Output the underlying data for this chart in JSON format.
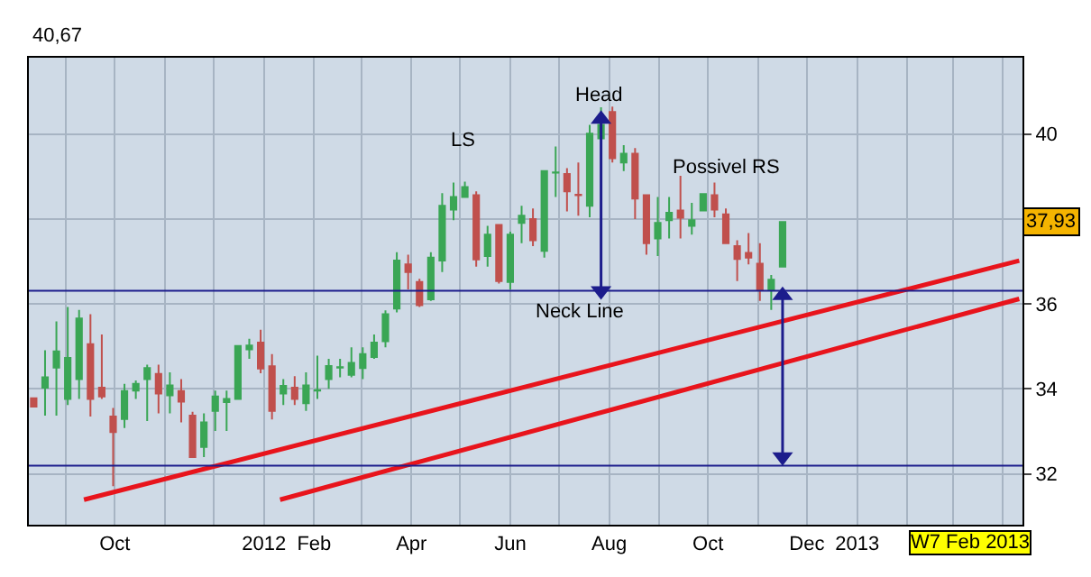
{
  "chart_data": {
    "type": "candlestick",
    "x": [
      "2011-08-12",
      "2011-08-19",
      "2011-08-26",
      "2011-09-02",
      "2011-09-09",
      "2011-09-16",
      "2011-09-23",
      "2011-09-30",
      "2011-10-07",
      "2011-10-14",
      "2011-10-21",
      "2011-10-28",
      "2011-11-04",
      "2011-11-11",
      "2011-11-18",
      "2011-11-25",
      "2011-12-02",
      "2011-12-09",
      "2011-12-16",
      "2011-12-23",
      "2011-12-30",
      "2012-01-06",
      "2012-01-13",
      "2012-01-20",
      "2012-01-27",
      "2012-02-03",
      "2012-02-10",
      "2012-02-17",
      "2012-02-24",
      "2012-03-02",
      "2012-03-09",
      "2012-03-16",
      "2012-03-23",
      "2012-03-30",
      "2012-04-06",
      "2012-04-13",
      "2012-04-20",
      "2012-04-27",
      "2012-05-04",
      "2012-05-11",
      "2012-05-18",
      "2012-05-25",
      "2012-06-01",
      "2012-06-08",
      "2012-06-15",
      "2012-06-22",
      "2012-06-29",
      "2012-07-06",
      "2012-07-13",
      "2012-07-20",
      "2012-07-27",
      "2012-08-03",
      "2012-08-10",
      "2012-08-17",
      "2012-08-24",
      "2012-08-31",
      "2012-09-07",
      "2012-09-14",
      "2012-09-21",
      "2012-09-28",
      "2012-10-05",
      "2012-10-12",
      "2012-10-19",
      "2012-10-26",
      "2012-11-02",
      "2012-11-09",
      "2012-11-16"
    ],
    "ohlc": [
      [
        33.78,
        33.78,
        33.58,
        33.58
      ],
      [
        34.03,
        34.91,
        33.37,
        34.27
      ],
      [
        34.5,
        35.59,
        33.37,
        34.88
      ],
      [
        33.76,
        35.93,
        33.62,
        34.73
      ],
      [
        34.23,
        35.86,
        33.76,
        35.66
      ],
      [
        35.05,
        35.76,
        33.35,
        33.76
      ],
      [
        34.03,
        35.28,
        33.76,
        33.82
      ],
      [
        33.35,
        33.55,
        31.71,
        32.98
      ],
      [
        33.29,
        34.12,
        33.08,
        33.95
      ],
      [
        33.96,
        34.2,
        33.76,
        34.12
      ],
      [
        34.23,
        34.57,
        33.24,
        34.49
      ],
      [
        34.35,
        34.57,
        33.42,
        33.89
      ],
      [
        33.85,
        34.39,
        33.42,
        34.08
      ],
      [
        33.95,
        34.23,
        33.21,
        33.7
      ],
      [
        33.37,
        33.46,
        32.39,
        32.39
      ],
      [
        32.63,
        33.42,
        32.39,
        33.21
      ],
      [
        33.48,
        33.96,
        33.01,
        33.82
      ],
      [
        33.69,
        33.96,
        33.01,
        33.76
      ],
      [
        33.76,
        35.01,
        33.76,
        35.01
      ],
      [
        34.93,
        35.18,
        34.71,
        35.02
      ],
      [
        35.09,
        35.39,
        34.37,
        34.48
      ],
      [
        34.53,
        34.82,
        33.28,
        33.48
      ],
      [
        33.89,
        34.23,
        33.62,
        34.07
      ],
      [
        34.03,
        34.3,
        33.62,
        33.76
      ],
      [
        33.66,
        34.39,
        33.48,
        34.08
      ],
      [
        33.96,
        34.78,
        33.76,
        33.97
      ],
      [
        34.23,
        34.71,
        34.0,
        34.54
      ],
      [
        34.5,
        34.71,
        34.27,
        34.51
      ],
      [
        34.33,
        34.98,
        34.27,
        34.61
      ],
      [
        34.49,
        34.98,
        34.23,
        34.82
      ],
      [
        34.75,
        35.28,
        34.71,
        35.09
      ],
      [
        35.12,
        35.85,
        34.98,
        35.76
      ],
      [
        35.89,
        37.22,
        35.8,
        37.02
      ],
      [
        36.93,
        37.16,
        36.34,
        36.75
      ],
      [
        36.52,
        36.59,
        35.93,
        35.97
      ],
      [
        36.11,
        37.22,
        36.07,
        37.09
      ],
      [
        37.02,
        38.61,
        36.75,
        38.31
      ],
      [
        38.22,
        38.86,
        37.97,
        38.52
      ],
      [
        38.52,
        38.88,
        38.52,
        38.75
      ],
      [
        38.56,
        38.65,
        36.88,
        37.05
      ],
      [
        37.13,
        37.84,
        36.88,
        37.63
      ],
      [
        37.86,
        37.86,
        36.48,
        36.54
      ],
      [
        36.52,
        37.7,
        36.34,
        37.63
      ],
      [
        37.91,
        38.31,
        37.43,
        38.08
      ],
      [
        38.0,
        38.25,
        37.36,
        37.5
      ],
      [
        37.25,
        39.13,
        37.09,
        39.13
      ],
      [
        39.09,
        39.71,
        38.52,
        39.1
      ],
      [
        39.06,
        39.2,
        38.18,
        38.65
      ],
      [
        38.57,
        39.33,
        38.08,
        38.56
      ],
      [
        38.31,
        40.22,
        38.04,
        40.01
      ],
      [
        39.9,
        40.63,
        39.9,
        40.22
      ],
      [
        40.52,
        40.65,
        39.33,
        39.43
      ],
      [
        39.33,
        39.74,
        39.13,
        39.54
      ],
      [
        39.54,
        39.67,
        38.0,
        38.48
      ],
      [
        38.56,
        38.56,
        37.16,
        37.43
      ],
      [
        37.54,
        38.52,
        37.13,
        37.91
      ],
      [
        37.97,
        38.52,
        37.54,
        38.15
      ],
      [
        38.2,
        39.02,
        37.54,
        38.03
      ],
      [
        37.84,
        38.38,
        37.63,
        37.97
      ],
      [
        38.2,
        38.59,
        38.18,
        38.59
      ],
      [
        38.56,
        38.86,
        38.04,
        38.22
      ],
      [
        38.11,
        38.25,
        37.43,
        37.43
      ],
      [
        37.36,
        37.5,
        36.54,
        37.06
      ],
      [
        37.2,
        37.67,
        36.93,
        37.09
      ],
      [
        36.95,
        37.43,
        36.07,
        36.34
      ],
      [
        36.34,
        36.68,
        35.86,
        36.57
      ],
      [
        36.88,
        37.93,
        36.86,
        37.93
      ]
    ],
    "colors": [
      "#c0504d",
      "#3aa655",
      "#3aa655",
      "#3aa655",
      "#3aa655",
      "#c0504d",
      "#c0504d",
      "#c0504d",
      "#3aa655",
      "#3aa655",
      "#3aa655",
      "#c0504d",
      "#3aa655",
      "#c0504d",
      "#c0504d",
      "#3aa655",
      "#3aa655",
      "#3aa655",
      "#3aa655",
      "#3aa655",
      "#c0504d",
      "#c0504d",
      "#3aa655",
      "#c0504d",
      "#3aa655",
      "#3aa655",
      "#3aa655",
      "#3aa655",
      "#3aa655",
      "#3aa655",
      "#3aa655",
      "#3aa655",
      "#3aa655",
      "#c0504d",
      "#c0504d",
      "#3aa655",
      "#3aa655",
      "#3aa655",
      "#3aa655",
      "#c0504d",
      "#3aa655",
      "#c0504d",
      "#3aa655",
      "#3aa655",
      "#c0504d",
      "#3aa655",
      "#3aa655",
      "#c0504d",
      "#c0504d",
      "#3aa655",
      "#3aa655",
      "#c0504d",
      "#3aa655",
      "#c0504d",
      "#c0504d",
      "#3aa655",
      "#3aa655",
      "#c0504d",
      "#3aa655",
      "#3aa655",
      "#c0504d",
      "#c0504d",
      "#c0504d",
      "#c0504d",
      "#c0504d",
      "#3aa655",
      "#3aa655"
    ],
    "series": [
      {
        "type": "line",
        "color": "#e8141c",
        "x": [
          "2011-09-12",
          "2013-04-11"
        ],
        "values": [
          31.39,
          37.02
        ]
      },
      {
        "type": "line",
        "color": "#e8141c",
        "x": [
          "2012-01-11",
          "2013-04-11"
        ],
        "values": [
          31.39,
          36.12
        ]
      },
      {
        "type": "line",
        "color": "#1c1c8c",
        "marker": "triangle",
        "x": [
          "2012-07-27",
          "2012-07-27"
        ],
        "values": [
          36.31,
          40.35
        ]
      },
      {
        "type": "line",
        "color": "#1c1c8c",
        "marker": "triangle",
        "x": [
          "2012-11-16",
          "2012-11-16"
        ],
        "values": [
          36.2,
          32.4
        ]
      }
    ],
    "ref_lines": [
      {
        "axis": "y",
        "value": 36.31,
        "color": "#1c1c8c",
        "label": "Neck Line"
      },
      {
        "axis": "y",
        "value": 32.19,
        "color": "#1c1c8c"
      }
    ],
    "annotations": [
      "40,67",
      "LS",
      "Head",
      "Possivel RS",
      "W7 Feb 2013",
      {
        "text": "37,93",
        "y": 37.93
      }
    ],
    "xlim": [
      "2011-08-09",
      "2013-04-13"
    ],
    "xticks": [
      {
        "value": "2011-09-01",
        "label": null
      },
      {
        "value": "2011-10-01",
        "label": "Oct"
      },
      {
        "value": "2011-11-01",
        "label": null
      },
      {
        "value": "2011-12-01",
        "label": null
      },
      {
        "value": "2012-01-01",
        "label": "2012"
      },
      {
        "value": "2012-02-01",
        "label": "Feb"
      },
      {
        "value": "2012-03-01",
        "label": null
      },
      {
        "value": "2012-04-01",
        "label": "Apr"
      },
      {
        "value": "2012-05-01",
        "label": null
      },
      {
        "value": "2012-06-01",
        "label": "Jun"
      },
      {
        "value": "2012-07-01",
        "label": null
      },
      {
        "value": "2012-08-01",
        "label": "Aug"
      },
      {
        "value": "2012-09-01",
        "label": null
      },
      {
        "value": "2012-10-01",
        "label": "Oct"
      },
      {
        "value": "2012-11-01",
        "label": null
      },
      {
        "value": "2012-12-01",
        "label": "Dec"
      },
      {
        "value": "2013-01-01",
        "label": "2013"
      },
      {
        "value": "2013-02-01",
        "label": null
      },
      {
        "value": "2013-03-01",
        "label": null
      },
      {
        "value": "2013-04-01",
        "label": null
      }
    ],
    "ylim": [
      30.8,
      41.8
    ],
    "yticks": [
      32,
      34,
      36,
      {
        "value": 38,
        "label": null
      },
      40
    ],
    "grid": true
  }
}
